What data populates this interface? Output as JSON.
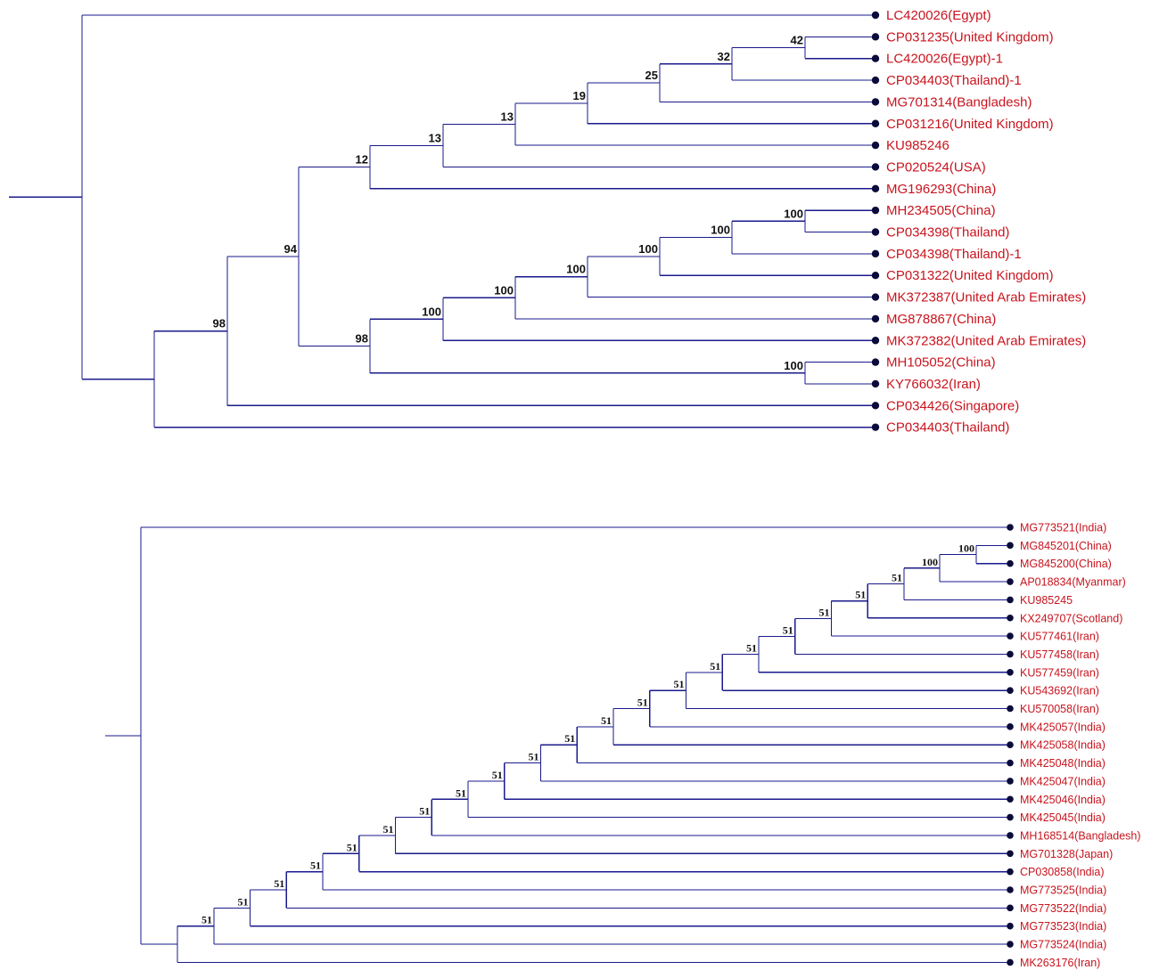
{
  "colors": {
    "branch": "#1a1a8c",
    "tip_dot": "#0b0b3b",
    "leaf_label": "#c8141e",
    "support_label": "#111111"
  },
  "trees": [
    {
      "id": "top",
      "leaves": [
        "LC420026(Egypt)",
        "CP031235(United Kingdom)",
        "LC420026(Egypt)-1",
        "CP034403(Thailand)-1",
        "MG701314(Bangladesh)",
        "CP031216(United Kingdom)",
        "KU985246",
        "CP020524(USA)",
        "MG196293(China)",
        "MH234505(China)",
        "CP034398(Thailand)",
        "CP034398(Thailand)-1",
        "CP031322(United Kingdom)",
        "MK372387(United Arab Emirates)",
        "MG878867(China)",
        "MK372382(United Arab Emirates)",
        "MH105052(China)",
        "KY766032(Iran)",
        "CP034426(Singapore)",
        "CP034403(Thailand)"
      ],
      "nodes": [
        {
          "id": "n42",
          "children": [
            "L1",
            "L2"
          ],
          "support": "42"
        },
        {
          "id": "n32",
          "children": [
            "n42",
            "L3"
          ],
          "support": "32"
        },
        {
          "id": "n25",
          "children": [
            "n32",
            "L4"
          ],
          "support": "25"
        },
        {
          "id": "n19",
          "children": [
            "n25",
            "L5"
          ],
          "support": "19"
        },
        {
          "id": "n13b",
          "children": [
            "n19",
            "L6"
          ],
          "support": "13"
        },
        {
          "id": "n13a",
          "children": [
            "n13b",
            "L7"
          ],
          "support": "13"
        },
        {
          "id": "n12",
          "children": [
            "n13a",
            "L8"
          ],
          "support": "12"
        },
        {
          "id": "m100a",
          "children": [
            "L9",
            "L10"
          ],
          "support": "100"
        },
        {
          "id": "m100b",
          "children": [
            "m100a",
            "L11"
          ],
          "support": "100"
        },
        {
          "id": "m100c",
          "children": [
            "m100b",
            "L12"
          ],
          "support": "100"
        },
        {
          "id": "m100d",
          "children": [
            "m100c",
            "L13"
          ],
          "support": "100"
        },
        {
          "id": "m100e",
          "children": [
            "m100d",
            "L14"
          ],
          "support": "100"
        },
        {
          "id": "m100f",
          "children": [
            "m100e",
            "L15"
          ],
          "support": "100"
        },
        {
          "id": "k100",
          "children": [
            "L16",
            "L17"
          ],
          "support": "100"
        },
        {
          "id": "n98a",
          "children": [
            "m100f",
            "k100"
          ],
          "support": "98"
        },
        {
          "id": "n94",
          "children": [
            "n12",
            "n98a"
          ],
          "support": "94"
        },
        {
          "id": "n98b",
          "children": [
            "n94",
            "L18"
          ],
          "support": "98"
        },
        {
          "id": "nA",
          "children": [
            "n98b",
            "L19"
          ],
          "support": ""
        },
        {
          "id": "root",
          "children": [
            "L0",
            "nA"
          ],
          "support": ""
        }
      ]
    },
    {
      "id": "bottom",
      "leaves": [
        "MG773521(India)",
        "MG845201(China)",
        "MG845200(China)",
        "AP018834(Myanmar)",
        "KU985245",
        "KX249707(Scotland)",
        "KU577461(Iran)",
        "KU577458(Iran)",
        "KU577459(Iran)",
        "KU543692(Iran)",
        "KU570058(Iran)",
        "MK425057(India)",
        "MK425058(India)",
        "MK425048(India)",
        "MK425047(India)",
        "MK425046(India)",
        "MK425045(India)",
        "MH168514(Bangladesh)",
        "MG701328(Japan)",
        "CP030858(India)",
        "MG773525(India)",
        "MG773522(India)",
        "MG773523(India)",
        "MG773524(India)",
        "MK263176(Iran)"
      ],
      "nodes": [
        {
          "id": "b100a",
          "children": [
            "L1",
            "L2"
          ],
          "support": "100"
        },
        {
          "id": "b100b",
          "children": [
            "b100a",
            "L3"
          ],
          "support": "100"
        },
        {
          "id": "b51_1",
          "children": [
            "b100b",
            "L4"
          ],
          "support": "51"
        },
        {
          "id": "b51_2",
          "children": [
            "b51_1",
            "L5"
          ],
          "support": "51"
        },
        {
          "id": "b51_3",
          "children": [
            "b51_2",
            "L6"
          ],
          "support": "51"
        },
        {
          "id": "b51_4",
          "children": [
            "b51_3",
            "L7"
          ],
          "support": "51"
        },
        {
          "id": "b51_5",
          "children": [
            "b51_4",
            "L8"
          ],
          "support": "51"
        },
        {
          "id": "b51_6",
          "children": [
            "b51_5",
            "L9"
          ],
          "support": "51"
        },
        {
          "id": "b51_7",
          "children": [
            "b51_6",
            "L10"
          ],
          "support": "51"
        },
        {
          "id": "b51_8",
          "children": [
            "b51_7",
            "L11"
          ],
          "support": "51"
        },
        {
          "id": "b51_9",
          "children": [
            "b51_8",
            "L12"
          ],
          "support": "51"
        },
        {
          "id": "b51_10",
          "children": [
            "b51_9",
            "L13"
          ],
          "support": "51"
        },
        {
          "id": "b51_11",
          "children": [
            "b51_10",
            "L14"
          ],
          "support": "51"
        },
        {
          "id": "b51_12",
          "children": [
            "b51_11",
            "L15"
          ],
          "support": "51"
        },
        {
          "id": "b51_13",
          "children": [
            "b51_12",
            "L16"
          ],
          "support": "51"
        },
        {
          "id": "b51_14",
          "children": [
            "b51_13",
            "L17"
          ],
          "support": "51"
        },
        {
          "id": "b51_15",
          "children": [
            "b51_14",
            "L18"
          ],
          "support": "51"
        },
        {
          "id": "b51_16",
          "children": [
            "b51_15",
            "L19"
          ],
          "support": "51"
        },
        {
          "id": "b51_17",
          "children": [
            "b51_16",
            "L20"
          ],
          "support": "51"
        },
        {
          "id": "b51_18",
          "children": [
            "b51_17",
            "L21"
          ],
          "support": "51"
        },
        {
          "id": "b51_19",
          "children": [
            "b51_18",
            "L22"
          ],
          "support": "51"
        },
        {
          "id": "b51_20",
          "children": [
            "b51_19",
            "L23"
          ],
          "support": "51"
        },
        {
          "id": "bA",
          "children": [
            "b51_20",
            "L24"
          ],
          "support": ""
        },
        {
          "id": "broot",
          "children": [
            "L0",
            "bA"
          ],
          "support": ""
        }
      ]
    }
  ]
}
